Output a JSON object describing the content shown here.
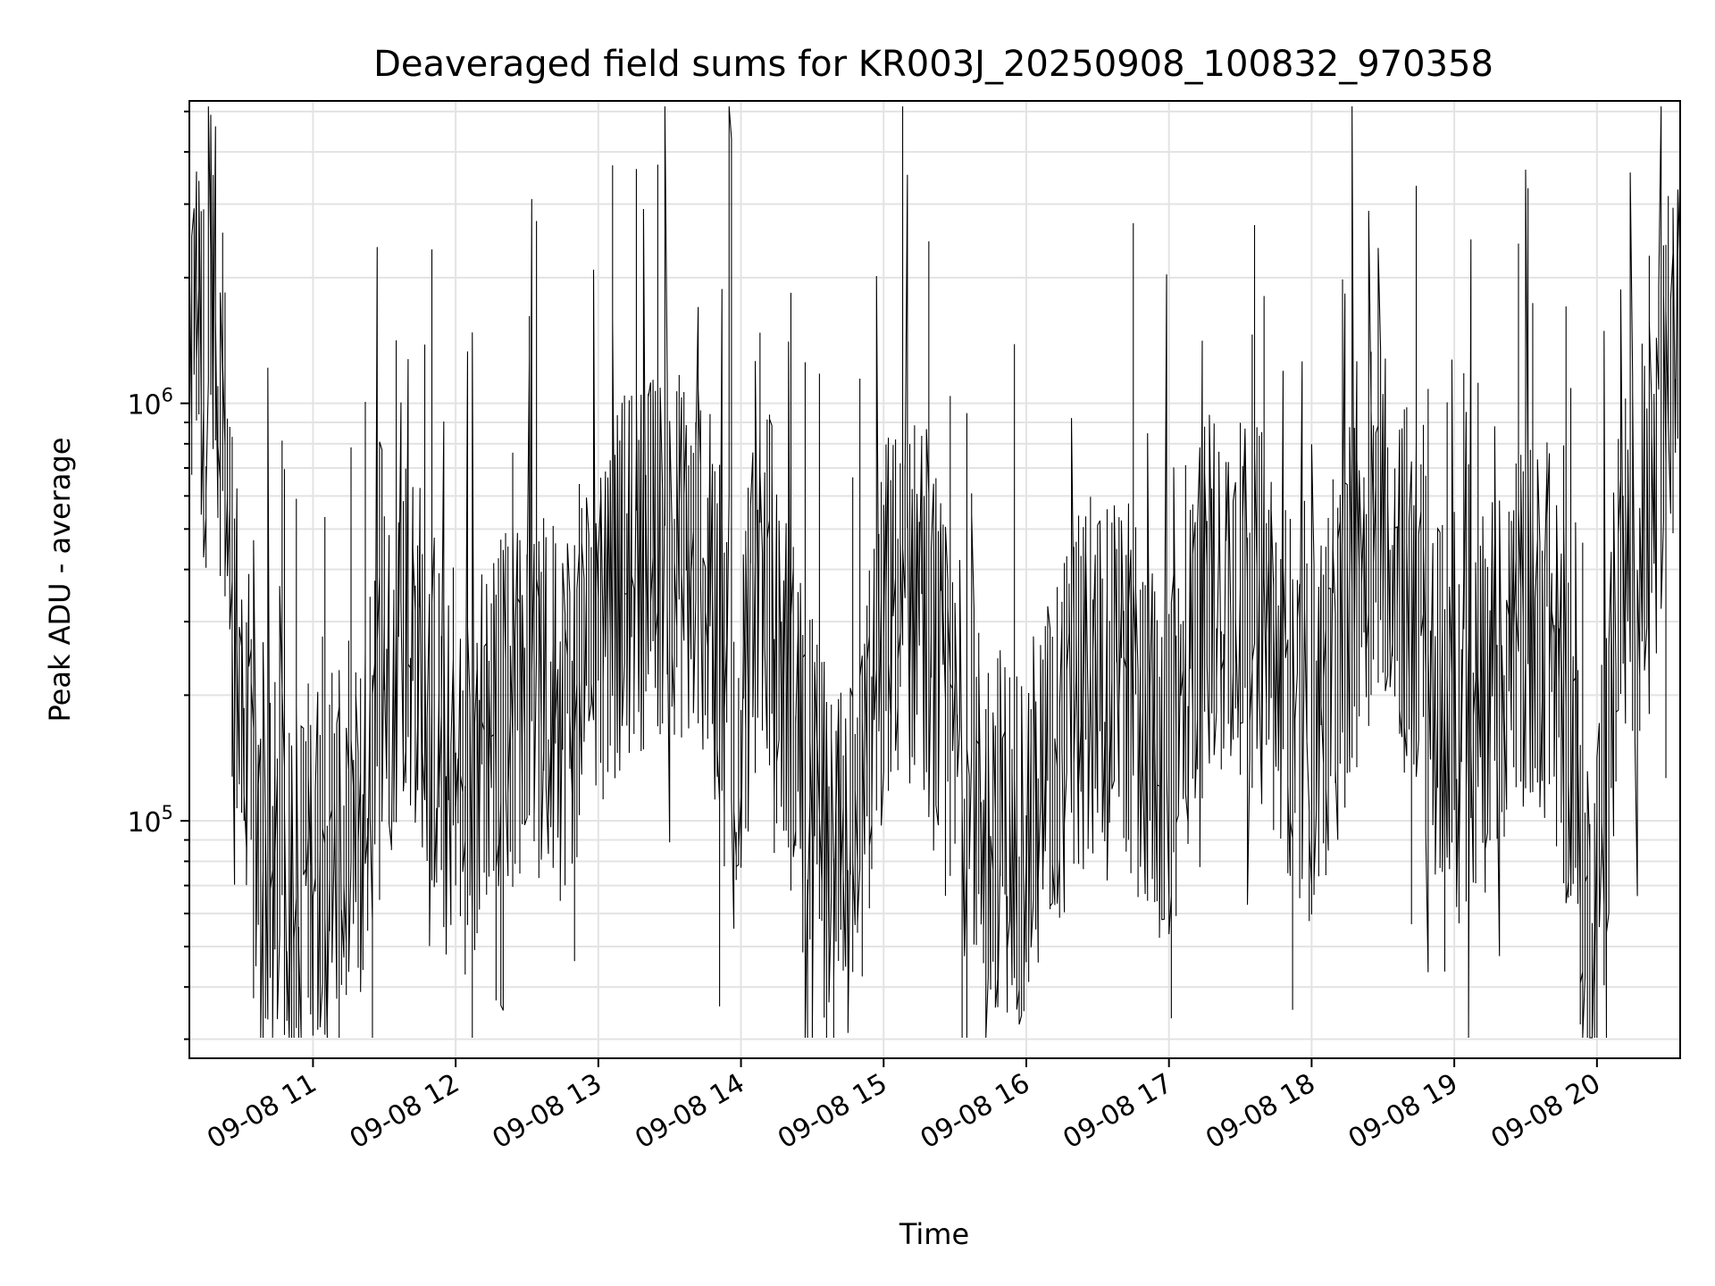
{
  "chart_data": {
    "type": "line",
    "title": "Deaveraged field sums for KR003J_20250908_100832_970358",
    "xlabel": "Time",
    "ylabel": "Peak ADU - average",
    "y_scale": "log",
    "ylim": [
      27000,
      5300000
    ],
    "xlim": [
      "2025-09-08 10:08",
      "2025-09-08 20:35"
    ],
    "x_ticks": [
      {
        "x": "2025-09-08 11:00",
        "label": "09-08 11"
      },
      {
        "x": "2025-09-08 12:00",
        "label": "09-08 12"
      },
      {
        "x": "2025-09-08 13:00",
        "label": "09-08 13"
      },
      {
        "x": "2025-09-08 14:00",
        "label": "09-08 14"
      },
      {
        "x": "2025-09-08 15:00",
        "label": "09-08 15"
      },
      {
        "x": "2025-09-08 16:00",
        "label": "09-08 16"
      },
      {
        "x": "2025-09-08 17:00",
        "label": "09-08 17"
      },
      {
        "x": "2025-09-08 18:00",
        "label": "09-08 18"
      },
      {
        "x": "2025-09-08 19:00",
        "label": "09-08 19"
      },
      {
        "x": "2025-09-08 20:00",
        "label": "09-08 20"
      }
    ],
    "y_ticks": [
      {
        "value": 100000,
        "base": "10",
        "exp": "5"
      },
      {
        "value": 1000000,
        "base": "10",
        "exp": "6"
      }
    ],
    "grid": true,
    "line_color": "#000000",
    "series": [
      {
        "x": [
          "2025-09-08 10:08",
          "2025-09-08 10:10",
          "2025-09-08 10:12",
          "2025-09-08 10:14",
          "2025-09-08 10:16",
          "2025-09-08 10:18",
          "2025-09-08 10:20",
          "2025-09-08 10:22",
          "2025-09-08 10:24",
          "2025-09-08 10:26",
          "2025-09-08 10:28",
          "2025-09-08 10:30",
          "2025-09-08 10:33",
          "2025-09-08 10:36",
          "2025-09-08 10:40",
          "2025-09-08 10:45",
          "2025-09-08 10:50",
          "2025-09-08 10:55",
          "2025-09-08 11:00",
          "2025-09-08 11:10",
          "2025-09-08 11:20",
          "2025-09-08 11:30",
          "2025-09-08 11:40",
          "2025-09-08 11:50",
          "2025-09-08 12:00",
          "2025-09-08 12:15",
          "2025-09-08 12:30",
          "2025-09-08 12:45",
          "2025-09-08 13:00",
          "2025-09-08 13:15",
          "2025-09-08 13:30",
          "2025-09-08 13:45",
          "2025-09-08 13:55",
          "2025-09-08 13:56",
          "2025-09-08 13:57",
          "2025-09-08 14:10",
          "2025-09-08 14:25",
          "2025-09-08 14:40",
          "2025-09-08 14:50",
          "2025-09-08 15:00",
          "2025-09-08 15:15",
          "2025-09-08 15:30",
          "2025-09-08 15:45",
          "2025-09-08 16:00",
          "2025-09-08 16:15",
          "2025-09-08 16:30",
          "2025-09-08 16:45",
          "2025-09-08 17:00",
          "2025-09-08 17:15",
          "2025-09-08 17:30",
          "2025-09-08 17:45",
          "2025-09-08 18:00",
          "2025-09-08 18:15",
          "2025-09-08 18:30",
          "2025-09-08 18:45",
          "2025-09-08 19:00",
          "2025-09-08 19:15",
          "2025-09-08 19:30",
          "2025-09-08 19:40",
          "2025-09-08 19:50",
          "2025-09-08 19:55",
          "2025-09-08 20:00",
          "2025-09-08 20:10",
          "2025-09-08 20:20",
          "2025-09-08 20:25",
          "2025-09-08 20:30",
          "2025-09-08 20:35"
        ],
        "y": [
          1000000,
          1400000,
          1900000,
          1200000,
          1100000,
          2200000,
          1300000,
          1000000,
          700000,
          400000,
          260000,
          180000,
          110000,
          85000,
          75000,
          70000,
          80000,
          75000,
          85000,
          80000,
          90000,
          200000,
          300000,
          200000,
          100000,
          180000,
          200000,
          180000,
          300000,
          400000,
          450000,
          400000,
          200000,
          4300000,
          150000,
          400000,
          150000,
          70000,
          80000,
          300000,
          350000,
          150000,
          100000,
          90000,
          150000,
          250000,
          200000,
          120000,
          350000,
          400000,
          250000,
          150000,
          300000,
          600000,
          300000,
          150000,
          200000,
          300000,
          280000,
          150000,
          60000,
          55000,
          400000,
          450000,
          500000,
          1200000,
          1200000
        ]
      }
    ]
  }
}
